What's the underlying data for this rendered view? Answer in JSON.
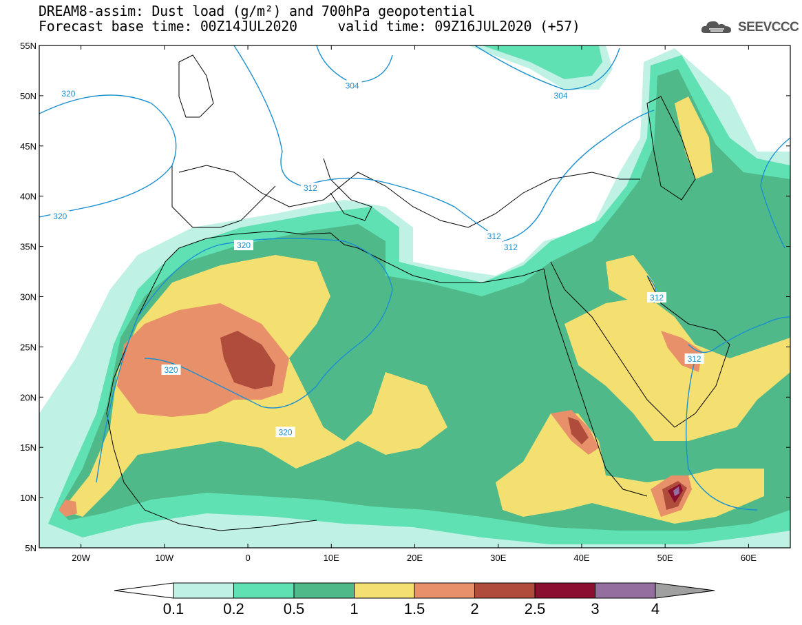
{
  "title": {
    "line1": "DREAM8-assim: Dust load (g/m²) and 700hPa geopotential",
    "line2": "Forecast base time: 00Z14JUL2020     valid time: 09Z16JUL2020 (+57)"
  },
  "logo": {
    "text": "SEEVCCC",
    "icon": "cloud-logo-icon"
  },
  "map": {
    "lat_labels": [
      "55N",
      "50N",
      "45N",
      "40N",
      "35N",
      "30N",
      "25N",
      "20N",
      "15N",
      "10N",
      "5N"
    ],
    "lon_labels": [
      "20W",
      "10W",
      "0",
      "10E",
      "20E",
      "30E",
      "40E",
      "50E",
      "60E"
    ],
    "extent": {
      "lon_min": -25,
      "lon_max": 65,
      "lat_min": 5,
      "lat_max": 55
    }
  },
  "contours": [
    {
      "label": "320",
      "lon": -21.5,
      "lat": 50.2
    },
    {
      "label": "320",
      "lon": -22.5,
      "lat": 38.0
    },
    {
      "label": "320",
      "lon": -0.5,
      "lat": 35.1
    },
    {
      "label": "320",
      "lon": -9.2,
      "lat": 22.7
    },
    {
      "label": "320",
      "lon": 4.5,
      "lat": 16.5
    },
    {
      "label": "312",
      "lon": 7.5,
      "lat": 40.8
    },
    {
      "label": "312",
      "lon": 29.5,
      "lat": 36.0
    },
    {
      "label": "312",
      "lon": 31.5,
      "lat": 34.9
    },
    {
      "label": "312",
      "lon": 49.0,
      "lat": 29.9
    },
    {
      "label": "312",
      "lon": 53.5,
      "lat": 23.8
    },
    {
      "label": "304",
      "lon": 12.5,
      "lat": 51.0
    },
    {
      "label": "304",
      "lon": 37.5,
      "lat": 50.0
    }
  ],
  "colorbar": {
    "labels": [
      "0.1",
      "0.2",
      "0.5",
      "1",
      "1.5",
      "2",
      "2.5",
      "3",
      "4"
    ],
    "colors": [
      "#bff1e4",
      "#5fe1b4",
      "#4fb98a",
      "#f4e070",
      "#e8906a",
      "#b04c3c",
      "#8a1030",
      "#956ea0"
    ],
    "low_color": "#ffffff",
    "high_color": "#a0a0a0"
  },
  "colors": {
    "contour": "#1a8fd0",
    "land_outline": "#000000"
  }
}
